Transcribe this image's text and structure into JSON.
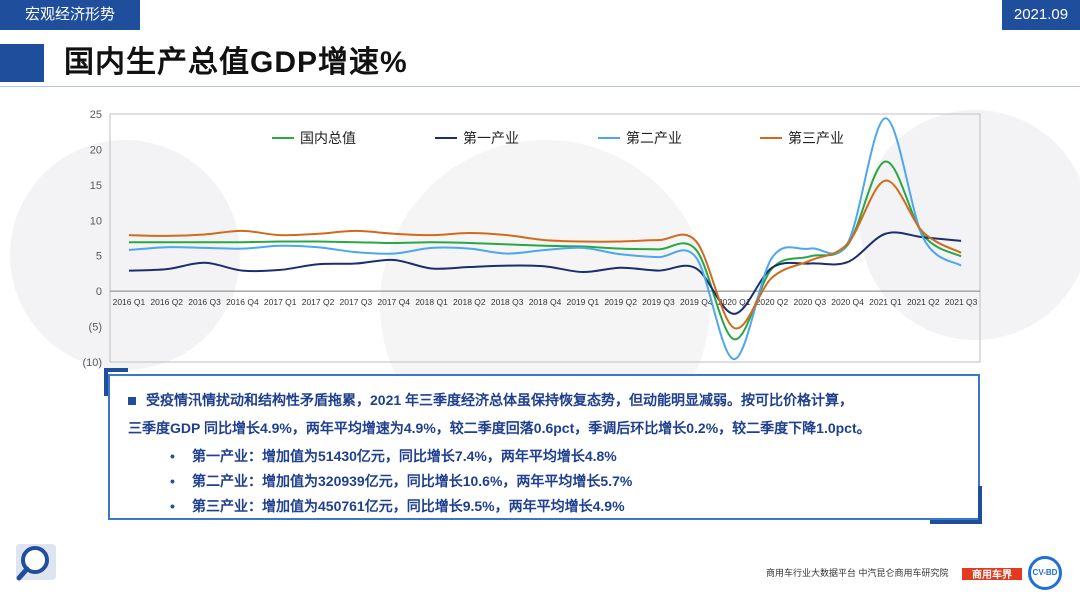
{
  "header": {
    "section": "宏观经济形势",
    "date": "2021.09"
  },
  "page_title": "国内生产总值GDP增速%",
  "chart_data": {
    "type": "line",
    "title": "",
    "xlabel": "",
    "ylabel": "",
    "ylim": [
      -10,
      25
    ],
    "y_ticks": [
      "25",
      "20",
      "15",
      "10",
      "5",
      "0",
      "(5)",
      "(10)"
    ],
    "categories": [
      "2016 Q1",
      "2016 Q2",
      "2016 Q3",
      "2016 Q4",
      "2017 Q1",
      "2017 Q2",
      "2017 Q3",
      "2017 Q4",
      "2018 Q1",
      "2018 Q2",
      "2018 Q3",
      "2018 Q4",
      "2019 Q1",
      "2019 Q2",
      "2019 Q3",
      "2019 Q4",
      "2020 Q1",
      "2020 Q2",
      "2020 Q3",
      "2020 Q4",
      "2021 Q1",
      "2021 Q2",
      "2021 Q3"
    ],
    "legend_position": "top",
    "series": [
      {
        "name": "国内总值",
        "color": "#28a745",
        "values": [
          6.9,
          6.9,
          6.9,
          6.9,
          7.0,
          7.0,
          6.9,
          6.8,
          6.9,
          6.8,
          6.6,
          6.4,
          6.3,
          6.0,
          5.9,
          5.8,
          -6.8,
          3.2,
          4.9,
          6.5,
          18.3,
          7.9,
          4.9
        ]
      },
      {
        "name": "第一产业",
        "color": "#1b2f6e",
        "values": [
          2.9,
          3.1,
          4.0,
          2.9,
          3.0,
          3.8,
          3.9,
          4.4,
          3.2,
          3.4,
          3.6,
          3.5,
          2.7,
          3.3,
          2.9,
          3.2,
          -3.2,
          3.3,
          3.9,
          4.1,
          8.1,
          7.6,
          7.1
        ]
      },
      {
        "name": "第二产业",
        "color": "#4da6f0",
        "values": [
          5.8,
          6.2,
          6.1,
          6.0,
          6.4,
          6.2,
          5.5,
          5.3,
          6.1,
          6.0,
          5.3,
          5.8,
          6.1,
          5.2,
          4.8,
          4.7,
          -9.6,
          4.7,
          6.0,
          6.8,
          24.4,
          7.5,
          3.6
        ]
      },
      {
        "name": "第三产业",
        "color": "#d26a1e",
        "values": [
          7.9,
          7.8,
          8.0,
          8.5,
          7.9,
          8.1,
          8.5,
          8.1,
          7.9,
          8.2,
          7.9,
          7.2,
          7.0,
          7.0,
          7.2,
          7.0,
          -5.2,
          1.9,
          4.3,
          6.7,
          15.6,
          8.3,
          5.4
        ]
      }
    ]
  },
  "summary": {
    "line1": "受疫情汛情扰动和结构性矛盾拖累，2021 年三季度经济总体虽保持恢复态势，但动能明显减弱。按可比价格计算，",
    "line2": "三季度GDP 同比增长4.9%，两年平均增速为4.9%，较二季度回落0.6pct，季调后环比增长0.2%，较二季度下降1.0pct。",
    "bullets": [
      "第一产业：增加值为51430亿元，同比增长7.4%，两年平均增长4.8%",
      "第二产业：增加值为320939亿元，同比增长10.6%，两年平均增长5.7%",
      "第三产业：增加值为450761亿元，同比增长9.5%，两年平均增长4.9%"
    ],
    "bullet_glyph": "•"
  },
  "footer": {
    "credits": "商用车行业大数据平台  中汽昆仑商用车研究院",
    "logo_text": "商用车界",
    "seal_text": "CV-BD"
  },
  "colors": {
    "brand": "#1f4e9d",
    "frame": "#3c78c8"
  }
}
